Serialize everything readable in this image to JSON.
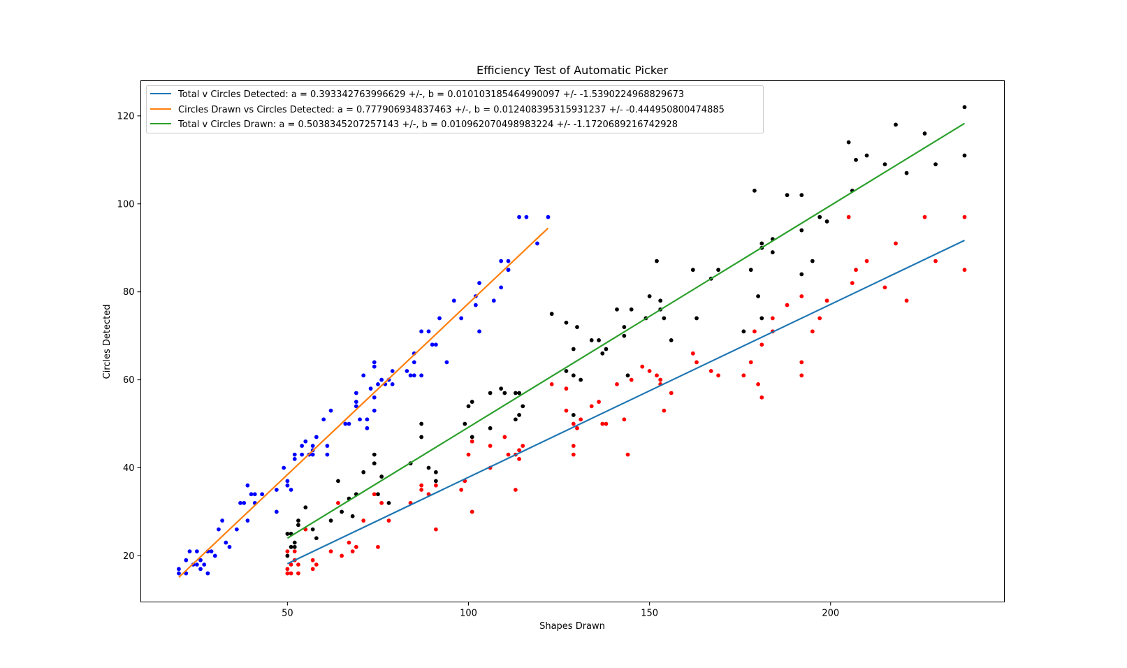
{
  "chart_data": {
    "type": "scatter",
    "title": "Efficiency Test of Automatic Picker",
    "xlabel": "Shapes Drawn",
    "ylabel": "Circles Detected",
    "xlim": [
      9.5,
      248
    ],
    "ylim": [
      9.5,
      128
    ],
    "xticks": [
      50,
      100,
      150,
      200
    ],
    "yticks": [
      20,
      40,
      60,
      80,
      100,
      120
    ],
    "grid": false,
    "legend_position": "top-left",
    "fit_lines": [
      {
        "name": "Total v Circles Detected: a = 0.393342763996629 +/-, b = 0.010103185464990097 +/- -1.5390224968829673",
        "color": "#1f77b4",
        "x": [
          50,
          237
        ],
        "y": [
          18.2,
          91.7
        ]
      },
      {
        "name": "Circles Drawn vs Circles Detected: a = 0.777906934837463 +/-, b = 0.012408395315931237 +/- -0.444950800474885",
        "color": "#ff7f0e",
        "x": [
          20,
          122
        ],
        "y": [
          15.1,
          94.5
        ]
      },
      {
        "name": "Total v Circles Drawn: a = 0.5038345207257143 +/-, b = 0.010962070498983224 +/- -1.1720689216742928",
        "color": "#2ca02c",
        "x": [
          50,
          237
        ],
        "y": [
          24.0,
          118.3
        ]
      }
    ],
    "series": [
      {
        "color": "#0000ff",
        "points": [
          [
            20,
            16
          ],
          [
            20,
            17
          ],
          [
            22,
            16
          ],
          [
            22,
            19
          ],
          [
            23,
            21
          ],
          [
            24,
            18
          ],
          [
            25,
            21
          ],
          [
            25,
            18
          ],
          [
            26,
            17
          ],
          [
            26,
            19
          ],
          [
            27,
            18
          ],
          [
            28,
            16
          ],
          [
            28,
            21
          ],
          [
            29,
            21
          ],
          [
            30,
            20
          ],
          [
            31,
            26
          ],
          [
            32,
            28
          ],
          [
            33,
            23
          ],
          [
            34,
            22
          ],
          [
            36,
            26
          ],
          [
            37,
            32
          ],
          [
            38,
            32
          ],
          [
            39,
            36
          ],
          [
            39,
            28
          ],
          [
            40,
            34
          ],
          [
            41,
            32
          ],
          [
            41,
            34
          ],
          [
            43,
            34
          ],
          [
            47,
            35
          ],
          [
            47,
            30
          ],
          [
            49,
            40
          ],
          [
            50,
            37
          ],
          [
            50,
            36
          ],
          [
            51,
            35
          ],
          [
            52,
            42
          ],
          [
            52,
            43
          ],
          [
            54,
            43
          ],
          [
            54,
            45
          ],
          [
            55,
            46
          ],
          [
            56,
            43
          ],
          [
            57,
            44
          ],
          [
            57,
            43
          ],
          [
            57,
            45
          ],
          [
            58,
            47
          ],
          [
            60,
            51
          ],
          [
            61,
            45
          ],
          [
            61,
            43
          ],
          [
            62,
            53
          ],
          [
            66,
            50
          ],
          [
            67,
            50
          ],
          [
            69,
            55
          ],
          [
            69,
            54
          ],
          [
            69,
            57
          ],
          [
            70,
            51
          ],
          [
            71,
            61
          ],
          [
            72,
            51
          ],
          [
            72,
            49
          ],
          [
            73,
            58
          ],
          [
            74,
            53
          ],
          [
            74,
            56
          ],
          [
            74,
            63
          ],
          [
            74,
            64
          ],
          [
            75,
            59
          ],
          [
            76,
            60
          ],
          [
            77,
            59
          ],
          [
            78,
            60
          ],
          [
            79,
            59
          ],
          [
            79,
            62
          ],
          [
            83,
            62
          ],
          [
            84,
            61
          ],
          [
            85,
            61
          ],
          [
            85,
            64
          ],
          [
            85,
            66
          ],
          [
            87,
            61
          ],
          [
            87,
            71
          ],
          [
            89,
            71
          ],
          [
            90,
            68
          ],
          [
            91,
            68
          ],
          [
            92,
            74
          ],
          [
            94,
            64
          ],
          [
            96,
            78
          ],
          [
            98,
            74
          ],
          [
            102,
            77
          ],
          [
            102,
            79
          ],
          [
            103,
            71
          ],
          [
            103,
            82
          ],
          [
            107,
            78
          ],
          [
            109,
            81
          ],
          [
            109,
            87
          ],
          [
            111,
            85
          ],
          [
            111,
            87
          ],
          [
            111,
            85
          ],
          [
            114,
            97
          ],
          [
            116,
            97
          ],
          [
            119,
            91
          ],
          [
            122,
            97
          ]
        ]
      },
      {
        "color": "#000000",
        "points": [
          [
            50,
            20
          ],
          [
            50,
            25
          ],
          [
            51,
            22
          ],
          [
            51,
            25
          ],
          [
            52,
            22
          ],
          [
            52,
            23
          ],
          [
            53,
            27
          ],
          [
            53,
            28
          ],
          [
            55,
            31
          ],
          [
            57,
            26
          ],
          [
            58,
            24
          ],
          [
            62,
            28
          ],
          [
            64,
            37
          ],
          [
            65,
            30
          ],
          [
            67,
            33
          ],
          [
            68,
            29
          ],
          [
            69,
            34
          ],
          [
            71,
            39
          ],
          [
            74,
            41
          ],
          [
            74,
            43
          ],
          [
            75,
            34
          ],
          [
            76,
            38
          ],
          [
            78,
            32
          ],
          [
            84,
            41
          ],
          [
            87,
            50
          ],
          [
            87,
            47
          ],
          [
            89,
            40
          ],
          [
            91,
            37
          ],
          [
            91,
            39
          ],
          [
            99,
            50
          ],
          [
            100,
            54
          ],
          [
            101,
            55
          ],
          [
            101,
            47
          ],
          [
            106,
            57
          ],
          [
            106,
            49
          ],
          [
            109,
            58
          ],
          [
            110,
            57
          ],
          [
            113,
            51
          ],
          [
            113,
            57
          ],
          [
            114,
            57
          ],
          [
            114,
            52
          ],
          [
            115,
            54
          ],
          [
            123,
            75
          ],
          [
            127,
            73
          ],
          [
            127,
            62
          ],
          [
            129,
            67
          ],
          [
            129,
            61
          ],
          [
            129,
            52
          ],
          [
            130,
            72
          ],
          [
            131,
            60
          ],
          [
            134,
            69
          ],
          [
            136,
            69
          ],
          [
            137,
            66
          ],
          [
            138,
            67
          ],
          [
            141,
            76
          ],
          [
            143,
            72
          ],
          [
            143,
            70
          ],
          [
            144,
            61
          ],
          [
            145,
            76
          ],
          [
            149,
            74
          ],
          [
            150,
            79
          ],
          [
            152,
            87
          ],
          [
            153,
            78
          ],
          [
            153,
            76
          ],
          [
            154,
            74
          ],
          [
            156,
            69
          ],
          [
            162,
            85
          ],
          [
            163,
            74
          ],
          [
            167,
            83
          ],
          [
            169,
            85
          ],
          [
            176,
            71
          ],
          [
            178,
            85
          ],
          [
            179,
            103
          ],
          [
            180,
            79
          ],
          [
            181,
            90
          ],
          [
            181,
            91
          ],
          [
            181,
            74
          ],
          [
            184,
            92
          ],
          [
            184,
            89
          ],
          [
            188,
            102
          ],
          [
            192,
            102
          ],
          [
            192,
            94
          ],
          [
            192,
            84
          ],
          [
            195,
            87
          ],
          [
            197,
            97
          ],
          [
            199,
            96
          ],
          [
            205,
            114
          ],
          [
            206,
            103
          ],
          [
            207,
            110
          ],
          [
            210,
            111
          ],
          [
            215,
            109
          ],
          [
            218,
            118
          ],
          [
            221,
            107
          ],
          [
            226,
            116
          ],
          [
            229,
            109
          ],
          [
            237,
            122
          ],
          [
            237,
            111
          ]
        ]
      },
      {
        "color": "#ff0000",
        "points": [
          [
            50,
            16
          ],
          [
            50,
            17
          ],
          [
            50,
            21
          ],
          [
            51,
            16
          ],
          [
            51,
            18
          ],
          [
            52,
            21
          ],
          [
            52,
            19
          ],
          [
            53,
            16
          ],
          [
            53,
            18
          ],
          [
            55,
            26
          ],
          [
            57,
            17
          ],
          [
            57,
            19
          ],
          [
            58,
            18
          ],
          [
            62,
            21
          ],
          [
            64,
            32
          ],
          [
            65,
            20
          ],
          [
            67,
            23
          ],
          [
            68,
            21
          ],
          [
            69,
            22
          ],
          [
            71,
            28
          ],
          [
            74,
            34
          ],
          [
            75,
            22
          ],
          [
            76,
            32
          ],
          [
            78,
            28
          ],
          [
            84,
            32
          ],
          [
            87,
            36
          ],
          [
            87,
            35
          ],
          [
            89,
            34
          ],
          [
            91,
            36
          ],
          [
            91,
            26
          ],
          [
            98,
            35
          ],
          [
            99,
            37
          ],
          [
            100,
            43
          ],
          [
            101,
            46
          ],
          [
            101,
            30
          ],
          [
            106,
            45
          ],
          [
            106,
            40
          ],
          [
            110,
            47
          ],
          [
            111,
            43
          ],
          [
            113,
            35
          ],
          [
            113,
            43
          ],
          [
            114,
            44
          ],
          [
            114,
            42
          ],
          [
            115,
            45
          ],
          [
            123,
            59
          ],
          [
            127,
            58
          ],
          [
            127,
            53
          ],
          [
            129,
            50
          ],
          [
            129,
            45
          ],
          [
            129,
            43
          ],
          [
            130,
            49
          ],
          [
            131,
            51
          ],
          [
            134,
            54
          ],
          [
            136,
            55
          ],
          [
            137,
            50
          ],
          [
            138,
            50
          ],
          [
            141,
            59
          ],
          [
            143,
            51
          ],
          [
            144,
            43
          ],
          [
            145,
            60
          ],
          [
            148,
            63
          ],
          [
            150,
            62
          ],
          [
            152,
            61
          ],
          [
            153,
            60
          ],
          [
            153,
            59
          ],
          [
            154,
            53
          ],
          [
            156,
            57
          ],
          [
            162,
            66
          ],
          [
            163,
            64
          ],
          [
            167,
            62
          ],
          [
            169,
            61
          ],
          [
            176,
            61
          ],
          [
            178,
            64
          ],
          [
            179,
            71
          ],
          [
            180,
            59
          ],
          [
            181,
            56
          ],
          [
            181,
            68
          ],
          [
            184,
            71
          ],
          [
            184,
            74
          ],
          [
            188,
            77
          ],
          [
            192,
            79
          ],
          [
            192,
            64
          ],
          [
            192,
            61
          ],
          [
            195,
            71
          ],
          [
            197,
            74
          ],
          [
            199,
            78
          ],
          [
            205,
            97
          ],
          [
            206,
            82
          ],
          [
            207,
            85
          ],
          [
            210,
            87
          ],
          [
            215,
            81
          ],
          [
            218,
            91
          ],
          [
            221,
            78
          ],
          [
            226,
            97
          ],
          [
            229,
            87
          ],
          [
            237,
            97
          ],
          [
            237,
            85
          ]
        ]
      }
    ]
  }
}
